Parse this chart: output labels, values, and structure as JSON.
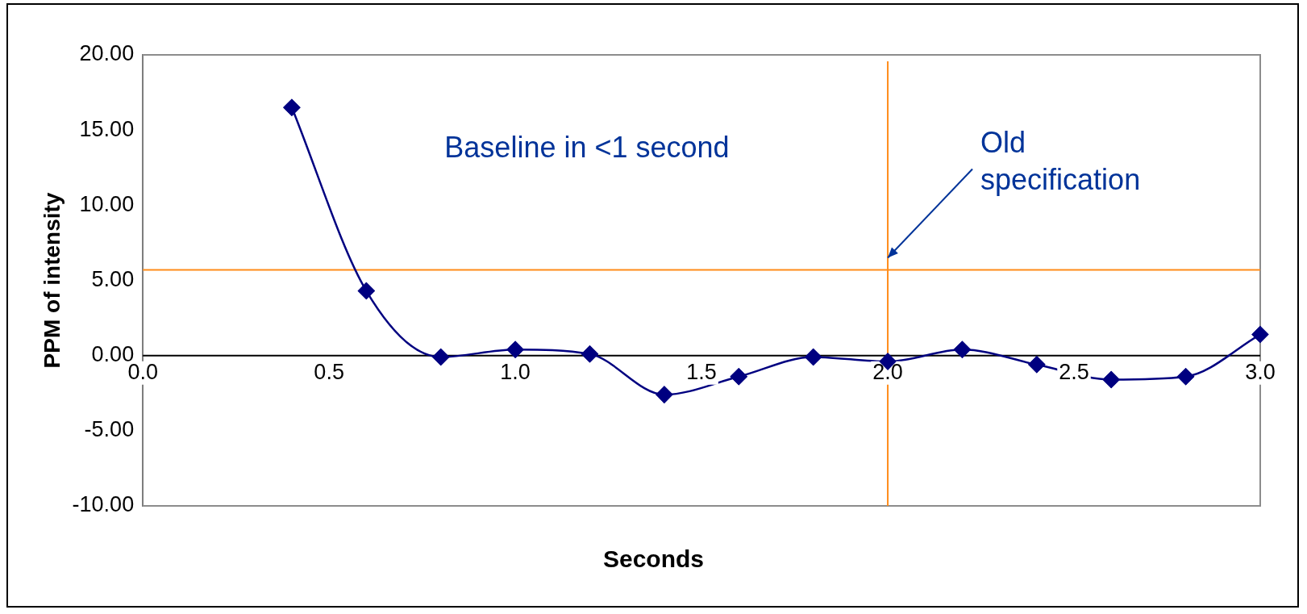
{
  "chart_data": {
    "type": "line",
    "xlabel": "Seconds",
    "ylabel": "PPM of intensity",
    "x": [
      0.4,
      0.6,
      0.8,
      1.0,
      1.2,
      1.4,
      1.6,
      1.8,
      2.0,
      2.2,
      2.4,
      2.6,
      2.8,
      3.0
    ],
    "series": [
      {
        "color": "#000080",
        "values": [
          16.5,
          4.3,
          -0.1,
          0.4,
          0.1,
          -2.6,
          -1.4,
          -0.1,
          -0.4,
          0.4,
          -0.6,
          -1.6,
          -1.4,
          1.4
        ]
      }
    ],
    "xlim": [
      0,
      3
    ],
    "xticks": [
      {
        "value": 0,
        "label": "0.0"
      },
      {
        "value": 0.5,
        "label": "0.5"
      },
      {
        "value": 1,
        "label": "1.0"
      },
      {
        "value": 1.5,
        "label": "1.5"
      },
      {
        "value": 2,
        "label": "2.0"
      },
      {
        "value": 2.5,
        "label": "2.5"
      },
      {
        "value": 3,
        "label": "3.0"
      }
    ],
    "ylim": [
      -10,
      20
    ],
    "yticks": [
      {
        "value": -10,
        "label": "-10.00"
      },
      {
        "value": -5,
        "label": "-5.00"
      },
      {
        "value": 0,
        "label": "0.00"
      },
      {
        "value": 5,
        "label": "5.00"
      },
      {
        "value": 10,
        "label": "10.00"
      },
      {
        "value": 15,
        "label": "15.00"
      },
      {
        "value": 20,
        "label": "20.00"
      }
    ],
    "ref_lines": [
      {
        "axis": "y",
        "value": 5.7,
        "color": "#ff8c1a"
      },
      {
        "axis": "x",
        "value": 2.0,
        "color": "#ff8c1a"
      }
    ],
    "annotations": [
      "Baseline in <1 second",
      {
        "text": "Old specification",
        "x": 2.0,
        "y": 6.5
      }
    ],
    "marker": "diamond",
    "line_style": "solid",
    "legend": false
  }
}
